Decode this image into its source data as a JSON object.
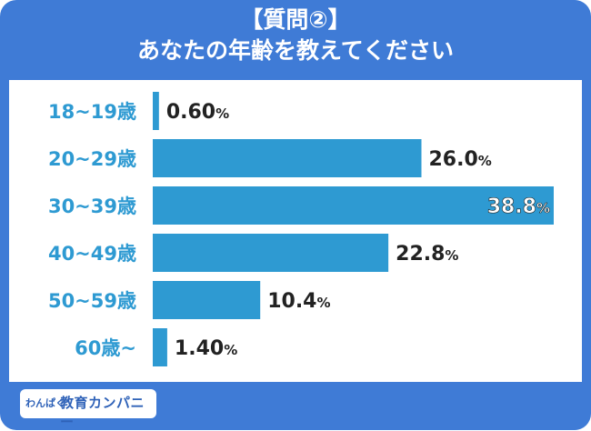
{
  "title_line1": "【質問②】",
  "title_line2": "あなたの年齢を教えてください",
  "logo": {
    "small": "わんぱく",
    "main": "教育カンパニー"
  },
  "colors": {
    "background": "#3f7bd6",
    "bar": "#2e9ad2",
    "category_text": "#2e9ad2",
    "value_text": "#222222"
  },
  "chart_data": {
    "type": "bar",
    "orientation": "horizontal",
    "categories": [
      "18~19歳",
      "20~29歳",
      "30~39歳",
      "40~49歳",
      "50~59歳",
      "60歳~"
    ],
    "values": [
      0.6,
      26.0,
      38.8,
      22.8,
      10.4,
      1.4
    ],
    "value_labels": [
      "0.60",
      "26.0",
      "38.8",
      "22.8",
      "10.4",
      "1.40"
    ],
    "unit": "%",
    "xlim": [
      0,
      40
    ],
    "grid": false,
    "legend": "none"
  }
}
